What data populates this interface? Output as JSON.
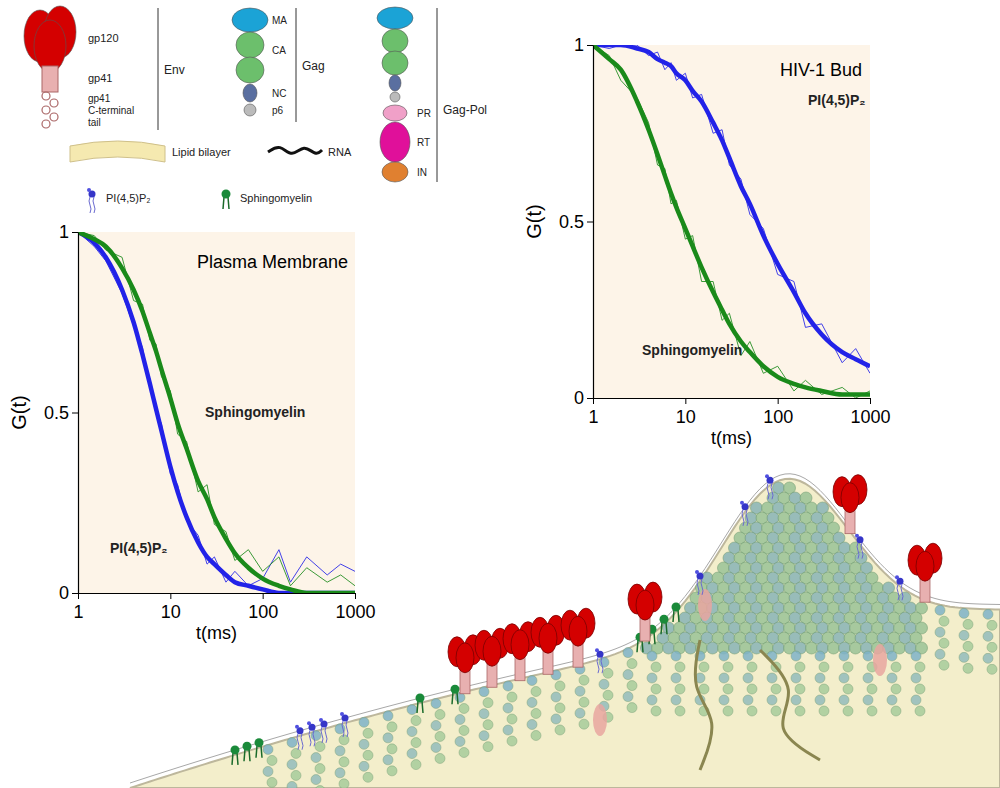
{
  "chart_data": [
    {
      "type": "line",
      "title": "Plasma Membrane",
      "x_label": "t(ms)",
      "y_label": "G(t)",
      "log": "x",
      "x": [
        1,
        1.5,
        2,
        3,
        4,
        5,
        6,
        7,
        8,
        10,
        12,
        15,
        20,
        25,
        30,
        40,
        50,
        70,
        100,
        150,
        200,
        300,
        500,
        700,
        1000
      ],
      "xlim": [
        1,
        1000
      ],
      "xticks": [
        1,
        10,
        100,
        1000
      ],
      "ylim": [
        0,
        1
      ],
      "yticks": [
        0,
        0.5,
        1
      ],
      "series": [
        {
          "name": "PI(4,5)P₂",
          "color": "#2222e8",
          "values": [
            1,
            0.97,
            0.93,
            0.84,
            0.75,
            0.66,
            0.58,
            0.51,
            0.45,
            0.35,
            0.28,
            0.21,
            0.14,
            0.1,
            0.08,
            0.05,
            0.03,
            0.02,
            0.01,
            0,
            0,
            0,
            0,
            0,
            0
          ],
          "measured": [
            1,
            0.96,
            0.92,
            0.83,
            0.74,
            0.68,
            0.57,
            0.5,
            0.47,
            0.33,
            0.3,
            0.2,
            0.16,
            0.08,
            0.1,
            0.03,
            0.06,
            0.02,
            0.04,
            0.12,
            0.03,
            0.1,
            0.05,
            0.08,
            0.06
          ]
        },
        {
          "name": "Sphingomyelin",
          "color": "#1a8a1a",
          "values": [
            1,
            0.98,
            0.96,
            0.9,
            0.84,
            0.78,
            0.72,
            0.67,
            0.62,
            0.54,
            0.47,
            0.4,
            0.31,
            0.26,
            0.21,
            0.15,
            0.11,
            0.07,
            0.04,
            0.02,
            0.01,
            0,
            0,
            0,
            0
          ],
          "measured": [
            1,
            0.99,
            0.95,
            0.93,
            0.81,
            0.8,
            0.7,
            0.69,
            0.6,
            0.56,
            0.44,
            0.42,
            0.28,
            0.3,
            0.19,
            0.17,
            0.09,
            0.12,
            0.06,
            0.1,
            0.02,
            0.07,
            0.03,
            0.05,
            0.02
          ]
        }
      ]
    },
    {
      "type": "line",
      "title": "HIV-1 Bud",
      "x_label": "t(ms)",
      "y_label": "G(t)",
      "log": "x",
      "x": [
        1,
        1.5,
        2,
        3,
        4,
        5,
        6,
        7,
        8,
        10,
        12,
        15,
        20,
        25,
        30,
        40,
        50,
        70,
        100,
        150,
        200,
        300,
        500,
        700,
        1000
      ],
      "xlim": [
        1,
        1000
      ],
      "xticks": [
        1,
        10,
        100,
        1000
      ],
      "ylim": [
        0,
        1
      ],
      "yticks": [
        0,
        0.5,
        1
      ],
      "series": [
        {
          "name": "PI(4,5)P₂",
          "color": "#2222e8",
          "values": [
            1,
            1,
            1,
            0.99,
            0.98,
            0.96,
            0.95,
            0.94,
            0.92,
            0.9,
            0.87,
            0.84,
            0.78,
            0.73,
            0.68,
            0.6,
            0.55,
            0.46,
            0.38,
            0.3,
            0.24,
            0.18,
            0.13,
            0.11,
            0.09
          ],
          "measured": [
            1,
            0.99,
            1,
            1,
            0.97,
            0.98,
            0.93,
            0.95,
            0.9,
            0.92,
            0.85,
            0.86,
            0.75,
            0.76,
            0.66,
            0.62,
            0.52,
            0.48,
            0.35,
            0.33,
            0.2,
            0.21,
            0.1,
            0.14,
            0.07
          ]
        },
        {
          "name": "Sphingomyelin",
          "color": "#1a8a1a",
          "values": [
            1,
            0.96,
            0.93,
            0.84,
            0.76,
            0.69,
            0.63,
            0.58,
            0.54,
            0.48,
            0.43,
            0.37,
            0.3,
            0.25,
            0.21,
            0.16,
            0.13,
            0.09,
            0.06,
            0.04,
            0.03,
            0.02,
            0.01,
            0.01,
            0.01
          ],
          "measured": [
            1,
            0.97,
            0.9,
            0.85,
            0.78,
            0.66,
            0.65,
            0.55,
            0.56,
            0.45,
            0.46,
            0.33,
            0.33,
            0.22,
            0.24,
            0.12,
            0.16,
            0.07,
            0.09,
            0.02,
            0.05,
            0.01,
            0.03,
            0,
            0.02
          ]
        }
      ]
    }
  ],
  "key": {
    "env": {
      "label": "Env",
      "parts": [
        "gp120",
        "gp41",
        "gp41 C-terminal tail"
      ]
    },
    "gag": {
      "label": "Gag",
      "parts": [
        "MA",
        "CA",
        "NC",
        "p6"
      ]
    },
    "gag_pol": {
      "label": "Gag-Pol",
      "parts": [
        "PR",
        "RT",
        "IN"
      ]
    },
    "items": [
      "Lipid bilayer",
      "RNA",
      "PI(4,5)P₂",
      "Sphingomyelin"
    ]
  }
}
